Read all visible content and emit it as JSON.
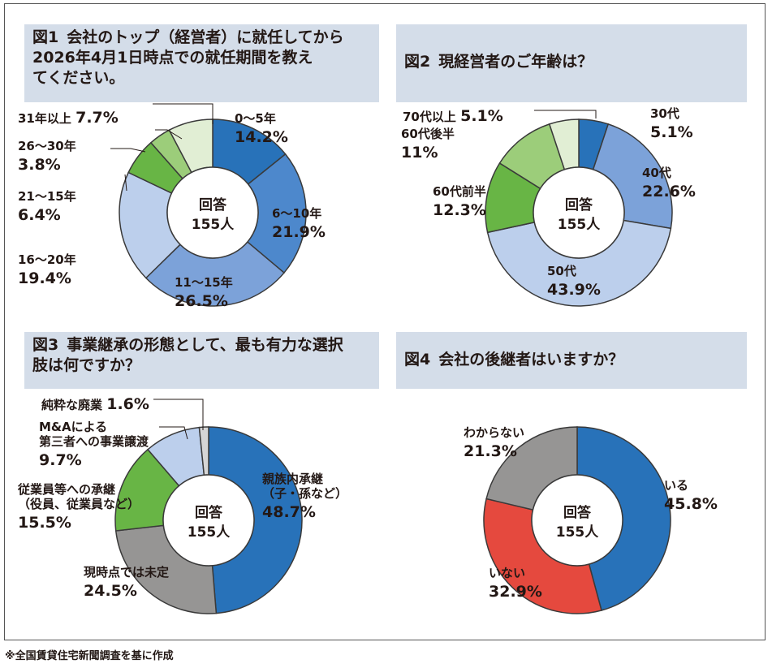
{
  "footnote": "※全国賃貸住宅新聞調査を基に作成",
  "chart_data": [
    {
      "type": "pie",
      "figure": "図1",
      "title": "会社のトップ（経営者）に就任してから2026年4月1日時点での就任期間を教えてください。",
      "center_label": [
        "回答",
        "155人"
      ],
      "categories": [
        "0～5年",
        "6～10年",
        "11～15年",
        "16～20年",
        "21～15年",
        "26～30年",
        "31年以上"
      ],
      "values": [
        14.2,
        21.9,
        26.5,
        19.4,
        6.4,
        3.8,
        7.7
      ],
      "value_labels": [
        "14.2%",
        "21.9%",
        "26.5%",
        "19.4%",
        "6.4%",
        "3.8%",
        "7.7%"
      ],
      "colors": [
        "#2872b9",
        "#4d88cc",
        "#7ca2d9",
        "#bccfec",
        "#68b545",
        "#9ccd7a",
        "#e1eed4"
      ]
    },
    {
      "type": "pie",
      "figure": "図2",
      "title": "現経営者のご年齢は？",
      "center_label": [
        "回答",
        "155人"
      ],
      "categories": [
        "30代",
        "40代",
        "50代",
        "60代前半",
        "60代後半",
        "70代以上"
      ],
      "values": [
        5.1,
        22.6,
        43.9,
        12.3,
        11,
        5.1
      ],
      "value_labels": [
        "5.1%",
        "22.6%",
        "43.9%",
        "12.3%",
        "11%",
        "5.1%"
      ],
      "colors": [
        "#2872b9",
        "#7ca2d9",
        "#bccfec",
        "#68b545",
        "#9ccd7a",
        "#e1eed4"
      ]
    },
    {
      "type": "pie",
      "figure": "図3",
      "title": "事業継承の形態として、最も有力な選択肢は何ですか？",
      "center_label": [
        "回答",
        "155人"
      ],
      "categories": [
        "親族内承継（子・孫など）",
        "現時点では未定",
        "従業員等への承継（役員、従業員など）",
        "M&Aによる第三者への事業譲渡",
        "純粋な廃業"
      ],
      "values": [
        48.7,
        24.5,
        15.5,
        9.7,
        1.6
      ],
      "value_labels": [
        "48.7%",
        "24.5%",
        "15.5%",
        "9.7%",
        "1.6%"
      ],
      "colors": [
        "#2872b9",
        "#969594",
        "#68b545",
        "#bccfec",
        "#d6d6d6"
      ]
    },
    {
      "type": "pie",
      "figure": "図4",
      "title": "会社の後継者はいますか？",
      "center_label": [
        "回答",
        "155人"
      ],
      "categories": [
        "いる",
        "いない",
        "わからない"
      ],
      "values": [
        45.8,
        32.9,
        21.3
      ],
      "value_labels": [
        "45.8%",
        "32.9%",
        "21.3%"
      ],
      "colors": [
        "#2872b9",
        "#e5493e",
        "#969594"
      ]
    }
  ],
  "panels": [
    {
      "num": "図1",
      "title_lines": [
        "会社のトップ（経営者）に就任してから",
        "2026年4月1日時点での就任期間を教え",
        "てください。"
      ]
    },
    {
      "num": "図2",
      "title_lines": [
        "現経営者のご年齢は？"
      ]
    },
    {
      "num": "図3",
      "title_lines": [
        "事業継承の形態として、最も有力な選択",
        "肢は何ですか？"
      ]
    },
    {
      "num": "図4",
      "title_lines": [
        "会社の後継者はいますか？"
      ]
    }
  ],
  "labels": [
    [
      {
        "name": [
          "0～5年"
        ],
        "val": "14.2%"
      },
      {
        "name": [
          "6～10年"
        ],
        "val": "21.9%"
      },
      {
        "name": [
          "11～15年"
        ],
        "val": "26.5%"
      },
      {
        "name": [
          "16～20年"
        ],
        "val": "19.4%"
      },
      {
        "name": [
          "21～15年"
        ],
        "val": "6.4%"
      },
      {
        "name": [
          "26～30年"
        ],
        "val": "3.8%"
      },
      {
        "name": [
          "31年以上"
        ],
        "val": "7.7%"
      }
    ],
    [
      {
        "name": [
          "30代"
        ],
        "val": "5.1%"
      },
      {
        "name": [
          "40代"
        ],
        "val": "22.6%"
      },
      {
        "name": [
          "50代"
        ],
        "val": "43.9%"
      },
      {
        "name": [
          "60代前半"
        ],
        "val": "12.3%"
      },
      {
        "name": [
          "60代後半"
        ],
        "val": "11%"
      },
      {
        "name": [
          "70代以上"
        ],
        "val": "5.1%"
      }
    ],
    [
      {
        "name": [
          "親族内承継",
          "（子・孫など）"
        ],
        "val": "48.7%"
      },
      {
        "name": [
          "現時点では未定"
        ],
        "val": "24.5%"
      },
      {
        "name": [
          "従業員等への承継",
          "（役員、従業員など）"
        ],
        "val": "15.5%"
      },
      {
        "name": [
          "M&Aによる",
          "第三者への事業譲渡"
        ],
        "val": "9.7%"
      },
      {
        "name": [
          "純粋な廃業"
        ],
        "val": "1.6%"
      }
    ],
    [
      {
        "name": [
          "いる"
        ],
        "val": "45.8%"
      },
      {
        "name": [
          "いない"
        ],
        "val": "32.9%"
      },
      {
        "name": [
          "わからない"
        ],
        "val": "21.3%"
      }
    ]
  ]
}
